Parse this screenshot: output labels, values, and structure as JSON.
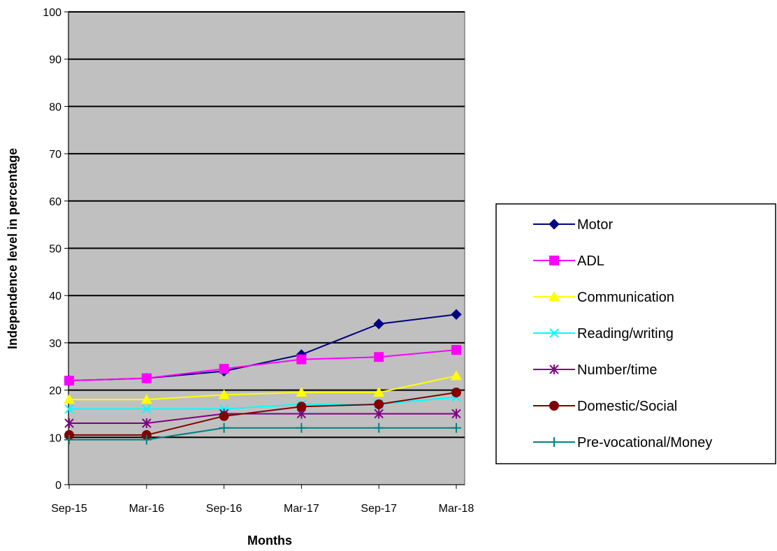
{
  "chart_data": {
    "type": "line",
    "title": "",
    "xlabel": "Months",
    "ylabel": "Independence level in percentage",
    "categories": [
      "Sep-15",
      "Mar-16",
      "Sep-16",
      "Mar-17",
      "Sep-17",
      "Mar-18"
    ],
    "ylim": [
      0,
      100
    ],
    "yticks": [
      0,
      10,
      20,
      30,
      40,
      50,
      60,
      70,
      80,
      90,
      100
    ],
    "grid": true,
    "plot_background": "#c0c0c0",
    "legend_position": "right",
    "series": [
      {
        "name": "Motor",
        "color": "#000080",
        "marker": "diamond",
        "values": [
          22,
          22.5,
          24,
          27.5,
          34,
          36
        ]
      },
      {
        "name": "ADL",
        "color": "#ff00ff",
        "marker": "square",
        "values": [
          22,
          22.5,
          24.5,
          26.5,
          27,
          28.5
        ]
      },
      {
        "name": "Communication",
        "color": "#ffff00",
        "marker": "triangle",
        "values": [
          18,
          18,
          19,
          19.5,
          19.5,
          23
        ]
      },
      {
        "name": "Reading/writing",
        "color": "#00ffff",
        "marker": "x",
        "values": [
          16,
          16,
          16,
          17,
          17,
          18.5
        ]
      },
      {
        "name": "Number/time",
        "color": "#800080",
        "marker": "star",
        "values": [
          13,
          13,
          15,
          15,
          15,
          15
        ]
      },
      {
        "name": "Domestic/Social",
        "color": "#800000",
        "marker": "circle",
        "values": [
          10.5,
          10.5,
          14.5,
          16.5,
          17,
          19.5
        ]
      },
      {
        "name": "Pre-vocational/Money",
        "color": "#008080",
        "marker": "plus",
        "values": [
          9.5,
          9.5,
          12,
          12,
          12,
          12
        ]
      }
    ]
  }
}
